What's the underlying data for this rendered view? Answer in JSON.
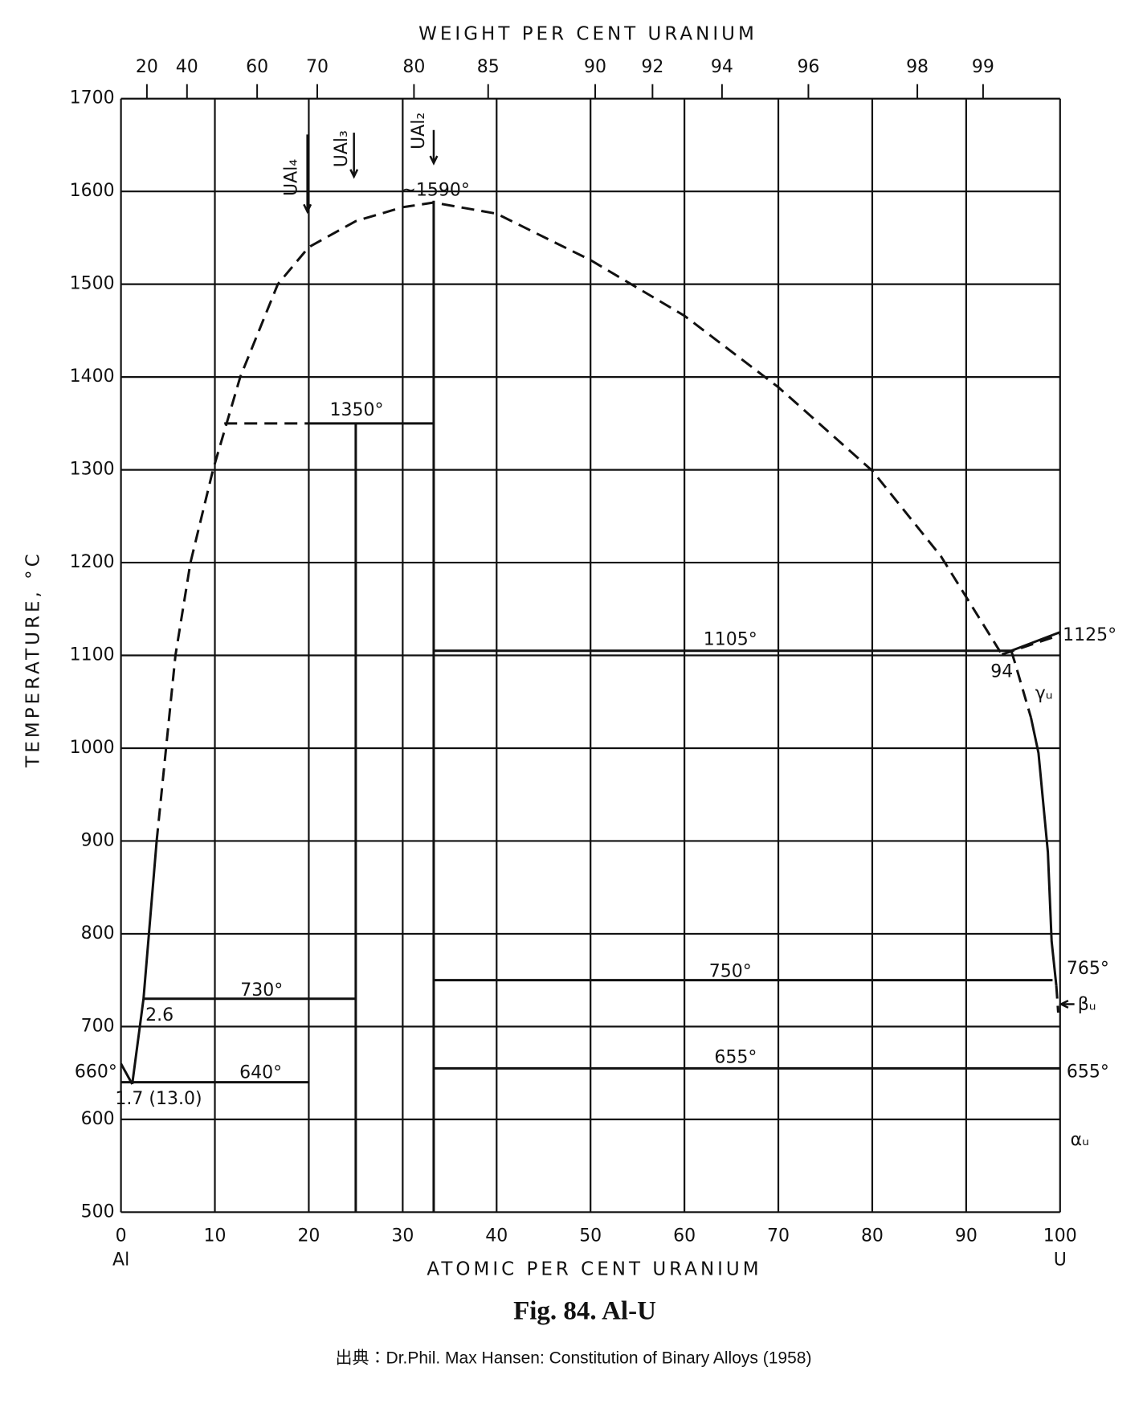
{
  "chart_data": {
    "type": "line",
    "title": "Fig. 84. Al-U",
    "source": "出典：Dr.Phil. Max Hansen: Constitution of Binary Alloys (1958)",
    "x_label": "ATOMIC PER CENT URANIUM",
    "x2_label": "WEIGHT PER CENT URANIUM",
    "y_label": "TEMPERATURE, °C",
    "x_end_labels": [
      "Al",
      "U"
    ],
    "xlim": [
      0,
      100
    ],
    "xticks": [
      0,
      10,
      20,
      30,
      40,
      50,
      60,
      70,
      80,
      90,
      100
    ],
    "x2ticks": [
      {
        "value": 2.76,
        "label": "20"
      },
      {
        "value": 7.03,
        "label": "40"
      },
      {
        "value": 14.5,
        "label": "60"
      },
      {
        "value": 20.9,
        "label": "70"
      },
      {
        "value": 31.2,
        "label": "80"
      },
      {
        "value": 39.1,
        "label": "85"
      },
      {
        "value": 50.5,
        "label": "90"
      },
      {
        "value": 56.6,
        "label": "92"
      },
      {
        "value": 64.0,
        "label": "94"
      },
      {
        "value": 73.2,
        "label": "96"
      },
      {
        "value": 84.8,
        "label": "98"
      },
      {
        "value": 91.8,
        "label": "99"
      }
    ],
    "ylim": [
      500,
      1700
    ],
    "yticks": [
      500,
      600,
      700,
      800,
      900,
      1000,
      1100,
      1200,
      1300,
      1400,
      1500,
      1600,
      1700
    ],
    "grid": true,
    "color": "#111111",
    "series": [
      {
        "x": [
          0,
          1.2
        ],
        "values": [
          660,
          638
        ],
        "dashed": false
      },
      {
        "x": [
          1.2,
          2.4,
          3.8
        ],
        "values": [
          638,
          730,
          900
        ],
        "dashed": false
      },
      {
        "x": [
          3.8,
          4.8,
          5.8,
          7.4,
          9.8,
          12.7,
          16.7,
          20,
          25,
          30,
          33.3,
          40,
          50,
          60,
          70,
          80,
          87.3,
          93.8
        ],
        "values": [
          900,
          1000,
          1100,
          1200,
          1300,
          1400,
          1500,
          1540,
          1568,
          1583,
          1588,
          1576,
          1526,
          1466,
          1389,
          1299,
          1207,
          1101
        ],
        "dashed": true
      },
      {
        "x": [
          93.8,
          100
        ],
        "values": [
          1101,
          1122
        ],
        "dashed": true
      },
      {
        "x": [
          94.8,
          100
        ],
        "values": [
          1105,
          1125
        ],
        "dashed": false
      },
      {
        "x": [
          94.8,
          95.2,
          96.9
        ],
        "values": [
          1105,
          1092,
          1033
        ],
        "dashed": true
      },
      {
        "x": [
          96.9,
          97.7,
          98.7,
          99.1,
          99.6
        ],
        "values": [
          1033,
          995,
          888,
          792,
          744
        ],
        "dashed": false
      },
      {
        "x": [
          99.6,
          99.8
        ],
        "values": [
          744,
          715
        ],
        "dashed": true
      },
      {
        "x": [
          11,
          20
        ],
        "values": [
          1350,
          1350
        ],
        "dashed": true
      },
      {
        "x": [
          20,
          33.3
        ],
        "values": [
          1350,
          1350
        ],
        "dashed": false
      },
      {
        "x": [
          25,
          25
        ],
        "values": [
          1350,
          500
        ],
        "dashed": false
      },
      {
        "x": [
          33.3,
          33.3
        ],
        "values": [
          1590,
          500
        ],
        "dashed": false
      },
      {
        "x": [
          2.4,
          25
        ],
        "values": [
          730,
          730
        ],
        "dashed": false
      },
      {
        "x": [
          0,
          20
        ],
        "values": [
          640,
          640
        ],
        "dashed": false
      },
      {
        "x": [
          33.3,
          94.8
        ],
        "values": [
          1105,
          1105
        ],
        "dashed": false
      },
      {
        "x": [
          33.3,
          99.2
        ],
        "values": [
          750,
          750
        ],
        "dashed": false
      },
      {
        "x": [
          33.3,
          100
        ],
        "values": [
          655,
          655
        ],
        "dashed": false
      }
    ],
    "annotations": [
      "~1590°",
      "1350°",
      "1105°",
      "1125°",
      "94",
      "γᵤ",
      "750°",
      "765°",
      "βᵤ",
      "730°",
      "2.6",
      "660°",
      "640°",
      "1.7 (13.0)",
      "655°",
      "655°",
      "αᵤ",
      "UAl₄",
      "UAl₃",
      "UAl₂"
    ]
  }
}
